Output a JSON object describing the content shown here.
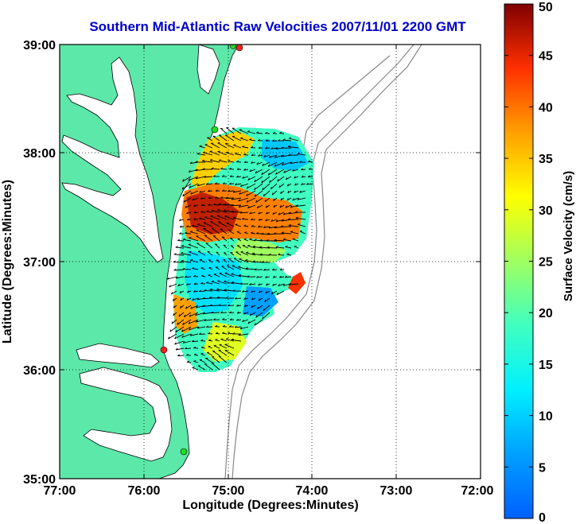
{
  "title": "Southern Mid-Atlantic Raw Velocities 2007/11/01 2200 GMT",
  "xlabel": "Longitude (Degrees:Minutes)",
  "ylabel": "Latitude (Degrees:Minutes)",
  "x_ticks": [
    "77:00",
    "76:00",
    "75:00",
    "74:00",
    "73:00",
    "72:00"
  ],
  "y_ticks": [
    "39:00",
    "38:00",
    "37:00",
    "36:00",
    "35:00"
  ],
  "colorbar": {
    "label": "Surface Velocity (cm/s)",
    "ticks": [
      "50",
      "45",
      "40",
      "35",
      "30",
      "25",
      "20",
      "15",
      "10",
      "5",
      "0"
    ],
    "range": [
      0,
      50
    ],
    "colormap": "jet"
  },
  "colors": {
    "title": "#0000cc",
    "land": "#5ce8a8",
    "bathymetry": "#888888",
    "station_active": "#ff2020",
    "station_inactive": "#22dd22"
  },
  "stations": [
    {
      "name": "north-station",
      "status": "active"
    },
    {
      "name": "delmarva-station",
      "status": "inactive"
    },
    {
      "name": "virginia-beach-station",
      "status": "active"
    },
    {
      "name": "outer-banks-station",
      "status": "inactive"
    }
  ]
}
